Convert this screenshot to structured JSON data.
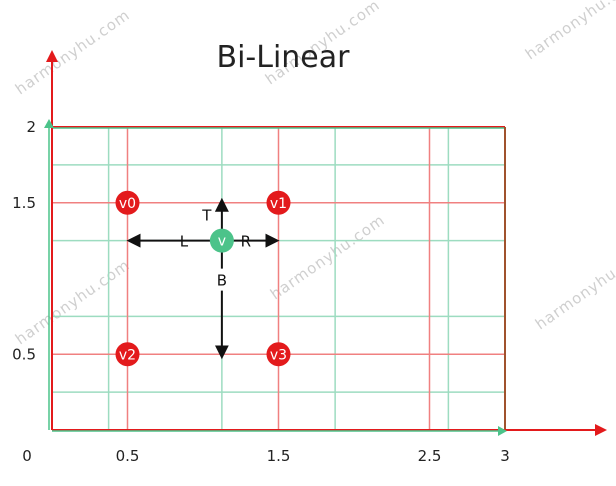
{
  "title": "Bi-Linear",
  "watermark": "harmonyhu.com",
  "colors": {
    "red": "#e31a1c",
    "red_grid": "#f08080",
    "green": "#4cc38a",
    "green_grid": "#9ddcc0",
    "arrow": "#111111",
    "rect_border": "#a0522d"
  },
  "x_ticks": [
    {
      "value": 0,
      "label": "0"
    },
    {
      "value": 0.5,
      "label": "0.5"
    },
    {
      "value": 1.5,
      "label": "1.5"
    },
    {
      "value": 2.5,
      "label": "2.5"
    },
    {
      "value": 3,
      "label": "3"
    }
  ],
  "y_ticks": [
    {
      "value": 0.5,
      "label": "0.5"
    },
    {
      "value": 1.5,
      "label": "1.5"
    },
    {
      "value": 2,
      "label": "2"
    }
  ],
  "red_grid_x": [
    0.5,
    1.5,
    2.5
  ],
  "red_grid_y": [
    0.5,
    1.5
  ],
  "green_grid_x": [
    0.375,
    1.125,
    1.875,
    2.625
  ],
  "green_grid_y": [
    0.25,
    0.75,
    1.25,
    1.75
  ],
  "extent": {
    "x": 3,
    "y": 2
  },
  "points": [
    {
      "label": "v0",
      "x": 0.5,
      "y": 1.5,
      "kind": "source"
    },
    {
      "label": "v1",
      "x": 1.5,
      "y": 1.5,
      "kind": "source"
    },
    {
      "label": "v2",
      "x": 0.5,
      "y": 0.5,
      "kind": "source"
    },
    {
      "label": "v3",
      "x": 1.5,
      "y": 0.5,
      "kind": "source"
    },
    {
      "label": "v",
      "x": 1.125,
      "y": 1.25,
      "kind": "target"
    }
  ],
  "directions": {
    "top": "T",
    "left": "L",
    "right": "R",
    "bottom": "B"
  }
}
